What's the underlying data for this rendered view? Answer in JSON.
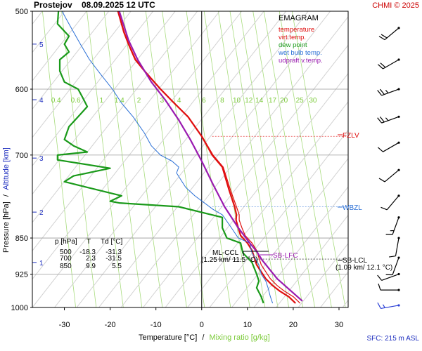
{
  "header": {
    "station": "Prostejov",
    "datetime": "08.09.2025 12 UTC",
    "credit": "CHMI © 2025"
  },
  "legend": {
    "title": "EMAGRAM",
    "items": [
      {
        "label": "temperature",
        "color": "#e01010"
      },
      {
        "label": "virt.temp.",
        "color": "#e01010"
      },
      {
        "label": "dew point",
        "color": "#1a9a1a"
      },
      {
        "label": "wet bulb temp.",
        "color": "#2a6fd6"
      },
      {
        "label": "udpraft v.temp.",
        "color": "#9a1ab0"
      }
    ]
  },
  "axes": {
    "ylabel_pressure": "Pressure [hPa]",
    "ylabel_separator": "/",
    "ylabel_altitude": "Altitude [km]",
    "xlabel_temperature": "Temperature [°C]",
    "xlabel_separator": "/",
    "xlabel_mixing": "Mixing ratio [g/kg]",
    "p_ticks": [
      "500",
      "600",
      "700",
      "850",
      "925",
      "1000"
    ],
    "t_ticks": [
      "-30",
      "-20",
      "-10",
      "0",
      "10",
      "20",
      "30"
    ],
    "alt_ticks": [
      "1",
      "2",
      "3",
      "4",
      "5"
    ],
    "mix_ticks": [
      "0.4",
      "0.6",
      "1",
      "1.4",
      "2",
      "3",
      "4",
      "6",
      "8",
      "10",
      "12",
      "14",
      "17",
      "20",
      "25",
      "30"
    ]
  },
  "table": {
    "headers": [
      "p [hPa]",
      "T",
      "Td [°C]"
    ],
    "rows": [
      [
        "500",
        "-18.3",
        "-31.3"
      ],
      [
        "700",
        "2.3",
        "-31.5"
      ],
      [
        "850",
        "9.9",
        "5.5"
      ]
    ]
  },
  "annotations": {
    "fzlv": "FZLV",
    "wbzl": "WBZL",
    "ml_ccl": "ML-CCL",
    "ml_ccl_detail": "(1.25 km/ 11.5 °C)",
    "sb_lfc": "SB-LFC",
    "sb_lcl": "SB-LCL",
    "sb_lcl_detail": "(1.09 km/ 12.1 °C)",
    "sfc": "SFC: 215 m ASL"
  },
  "chart_data": {
    "type": "line",
    "title": "EMAGRAM",
    "xlabel": "Temperature [°C]",
    "ylabel": "Pressure [hPa]",
    "xlim": [
      -37,
      32
    ],
    "ylim": [
      1000,
      500
    ],
    "y_scale": "log",
    "grid": true,
    "legend_position": "top-right",
    "series": [
      {
        "name": "temperature",
        "color": "#e01010",
        "points": [
          [
            20.5,
            990
          ],
          [
            19.0,
            975
          ],
          [
            17.0,
            962
          ],
          [
            15.5,
            950
          ],
          [
            14.0,
            935
          ],
          [
            13.0,
            920
          ],
          [
            12.0,
            905
          ],
          [
            11.5,
            890
          ],
          [
            11.0,
            875
          ],
          [
            10.0,
            860
          ],
          [
            8.5,
            845
          ],
          [
            8.0,
            830
          ],
          [
            7.5,
            815
          ],
          [
            7.6,
            805
          ],
          [
            7.2,
            790
          ],
          [
            6.0,
            760
          ],
          [
            4.5,
            720
          ],
          [
            2.3,
            700
          ],
          [
            0.0,
            670
          ],
          [
            -3.0,
            640
          ],
          [
            -6.0,
            620
          ],
          [
            -9.0,
            600
          ],
          [
            -12.5,
            575
          ],
          [
            -14.5,
            560
          ],
          [
            -16.0,
            540
          ],
          [
            -17.0,
            525
          ],
          [
            -18.3,
            500
          ]
        ]
      },
      {
        "name": "virt.temp.",
        "color": "#e01010",
        "points": [
          [
            21.5,
            990
          ],
          [
            20.0,
            975
          ],
          [
            18.0,
            962
          ],
          [
            16.5,
            950
          ],
          [
            15.0,
            935
          ],
          [
            14.0,
            920
          ],
          [
            13.0,
            905
          ],
          [
            12.5,
            890
          ],
          [
            12.0,
            875
          ],
          [
            11.0,
            860
          ],
          [
            9.5,
            845
          ],
          [
            8.8,
            830
          ],
          [
            8.2,
            815
          ],
          [
            8.2,
            805
          ],
          [
            7.6,
            790
          ],
          [
            6.3,
            760
          ],
          [
            4.7,
            720
          ],
          [
            2.5,
            700
          ],
          [
            0.1,
            670
          ],
          [
            -2.9,
            640
          ],
          [
            -5.9,
            620
          ],
          [
            -8.9,
            600
          ],
          [
            -12.4,
            575
          ],
          [
            -14.4,
            560
          ],
          [
            -15.9,
            540
          ],
          [
            -16.9,
            525
          ],
          [
            -18.2,
            500
          ]
        ]
      },
      {
        "name": "dew point",
        "color": "#1a9a1a",
        "points": [
          [
            13.5,
            990
          ],
          [
            13.0,
            975
          ],
          [
            12.0,
            955
          ],
          [
            12.5,
            940
          ],
          [
            12.0,
            925
          ],
          [
            11.0,
            900
          ],
          [
            9.0,
            880
          ],
          [
            8.5,
            860
          ],
          [
            5.5,
            850
          ],
          [
            4.5,
            830
          ],
          [
            4.5,
            810
          ],
          [
            -5.0,
            790
          ],
          [
            -18.0,
            783
          ],
          [
            -20.0,
            780
          ],
          [
            -17.5,
            770
          ],
          [
            -25.0,
            755
          ],
          [
            -30.0,
            745
          ],
          [
            -28.0,
            735
          ],
          [
            -20.0,
            722
          ],
          [
            -31.5,
            708
          ],
          [
            -31.5,
            700
          ],
          [
            -25.0,
            695
          ],
          [
            -28.0,
            685
          ],
          [
            -30.0,
            675
          ],
          [
            -29.0,
            655
          ],
          [
            -27.0,
            640
          ],
          [
            -25.0,
            625
          ],
          [
            -26.0,
            612
          ],
          [
            -27.0,
            600
          ],
          [
            -30.0,
            590
          ],
          [
            -31.0,
            575
          ],
          [
            -31.0,
            560
          ],
          [
            -29.0,
            550
          ],
          [
            -30.0,
            540
          ],
          [
            -29.0,
            530
          ],
          [
            -31.5,
            515
          ],
          [
            -31.3,
            500
          ]
        ]
      },
      {
        "name": "wet bulb temp.",
        "color": "#2a6fd6",
        "points": [
          [
            15.5,
            990
          ],
          [
            15.0,
            975
          ],
          [
            14.5,
            955
          ],
          [
            14.0,
            940
          ],
          [
            13.0,
            925
          ],
          [
            12.5,
            905
          ],
          [
            11.0,
            880
          ],
          [
            10.5,
            860
          ],
          [
            8.0,
            850
          ],
          [
            6.5,
            830
          ],
          [
            4.5,
            805
          ],
          [
            2.5,
            795
          ],
          [
            -1.5,
            770
          ],
          [
            -3.5,
            755
          ],
          [
            -5.5,
            730
          ],
          [
            -5.0,
            720
          ],
          [
            -6.5,
            710
          ],
          [
            -9.0,
            700
          ],
          [
            -11.0,
            685
          ],
          [
            -12.5,
            665
          ],
          [
            -15.0,
            640
          ],
          [
            -17.5,
            620
          ],
          [
            -19.5,
            600
          ],
          [
            -22.0,
            580
          ],
          [
            -24.5,
            560
          ],
          [
            -26.5,
            540
          ],
          [
            -28.0,
            525
          ],
          [
            -29.5,
            510
          ],
          [
            -30.5,
            500
          ]
        ]
      },
      {
        "name": "udpraft v.temp.",
        "color": "#9a1ab0",
        "points": [
          [
            22.0,
            985
          ],
          [
            16.5,
            935
          ],
          [
            13.2,
            895
          ],
          [
            12.0,
            877
          ],
          [
            10.5,
            860
          ],
          [
            8.0,
            830
          ],
          [
            5.0,
            790
          ],
          [
            2.5,
            750
          ],
          [
            0.0,
            710
          ],
          [
            -2.5,
            675
          ],
          [
            -5.0,
            645
          ],
          [
            -8.0,
            615
          ],
          [
            -11.0,
            590
          ],
          [
            -14.0,
            560
          ],
          [
            -16.0,
            535
          ],
          [
            -18.0,
            500
          ]
        ]
      }
    ],
    "mixing_ratio_lines_gkg": [
      0.4,
      0.6,
      1,
      1.4,
      2,
      3,
      4,
      6,
      8,
      10,
      12,
      14,
      17,
      20,
      25,
      30
    ],
    "altitude_km_ticks": [
      [
        1,
        900
      ],
      [
        2,
        800
      ],
      [
        3,
        705
      ],
      [
        4,
        615
      ],
      [
        5,
        540
      ]
    ],
    "levels": {
      "FZLV_hPa": 670,
      "WBZL_hPa": 790,
      "SB_LCL_hPa": 893,
      "SB_LFC_hPa": 867,
      "ML_CCL_hPa": 865
    },
    "wind_barbs": [
      {
        "p": 995,
        "dir": 260,
        "speed": 5,
        "color": "#2a3fd6"
      },
      {
        "p": 960,
        "dir": 270,
        "speed": 10,
        "color": "#000000"
      },
      {
        "p": 925,
        "dir": 250,
        "speed": 10,
        "color": "#000000"
      },
      {
        "p": 890,
        "dir": 200,
        "speed": 10,
        "color": "#000000"
      },
      {
        "p": 850,
        "dir": 190,
        "speed": 10,
        "color": "#000000"
      },
      {
        "p": 810,
        "dir": 200,
        "speed": 5,
        "color": "#000000"
      },
      {
        "p": 770,
        "dir": 220,
        "speed": 10,
        "color": "#000000"
      },
      {
        "p": 725,
        "dir": 230,
        "speed": 10,
        "color": "#000000"
      },
      {
        "p": 680,
        "dir": 240,
        "speed": 10,
        "color": "#000000"
      },
      {
        "p": 640,
        "dir": 250,
        "speed": 15,
        "color": "#000000"
      },
      {
        "p": 600,
        "dir": 250,
        "speed": 15,
        "color": "#000000"
      },
      {
        "p": 560,
        "dir": 240,
        "speed": 20,
        "color": "#000000"
      },
      {
        "p": 520,
        "dir": 230,
        "speed": 20,
        "color": "#000000"
      }
    ]
  }
}
